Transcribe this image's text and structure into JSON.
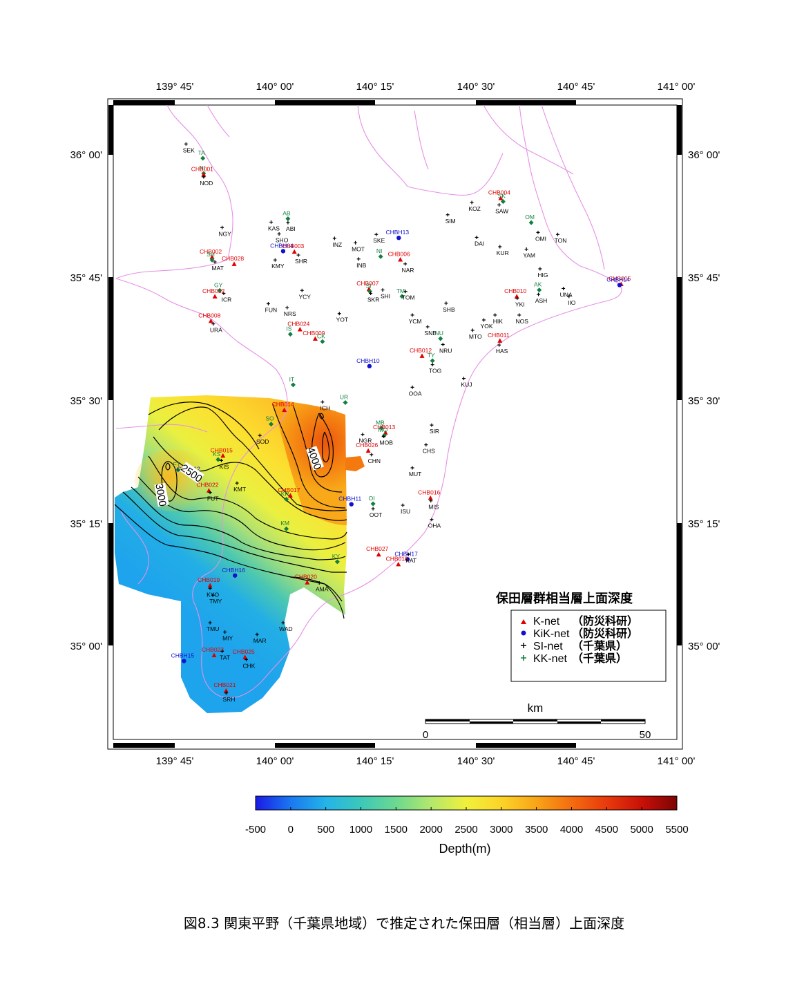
{
  "figure": {
    "caption": "図8.3 関東平野（千葉県地域）で推定された保田層（相当層）上面深度"
  },
  "map": {
    "lon_labels": [
      "139° 45'",
      "140° 00'",
      "140° 15'",
      "140° 30'",
      "140° 45'",
      "141° 00'"
    ],
    "lat_labels": [
      "36° 00'",
      "35° 45'",
      "35° 30'",
      "35° 15'",
      "35° 00'"
    ],
    "contour_labels": [
      "2500",
      "3000",
      "4000"
    ],
    "scale_bar": {
      "unit": "km",
      "start": "0",
      "end": "50"
    },
    "colors": {
      "coast": "#e58fe5",
      "kind_knet": "#e00000",
      "kind_kik": "#1010d0",
      "kind_si": "#000000",
      "kind_kk": "#108040"
    }
  },
  "legend": {
    "title": "保田層群相当層上面深度",
    "items": [
      {
        "net": "K-net",
        "org": "（防災科研）",
        "kind": "knet"
      },
      {
        "net": "KiK-net",
        "org": "（防災科研）",
        "kind": "kik"
      },
      {
        "net": "SI-net",
        "org": "（千葉県）",
        "kind": "si"
      },
      {
        "net": "KK-net",
        "org": "（千葉県）",
        "kind": "kk"
      }
    ]
  },
  "colorbar": {
    "ticks": [
      "-500",
      "0",
      "500",
      "1000",
      "1500",
      "2000",
      "2500",
      "3000",
      "3500",
      "4000",
      "4500",
      "5000",
      "5500"
    ],
    "label": "Depth(m)",
    "range": [
      -500,
      5500
    ]
  },
  "stations": [
    {
      "code": "SEK",
      "kind": "si",
      "lon": 139.778,
      "lat": 36.022
    },
    {
      "code": "TA",
      "kind": "kk",
      "lon": 139.82,
      "lat": 35.993
    },
    {
      "code": "NI",
      "kind": "kk",
      "lon": 139.822,
      "lat": 35.962
    },
    {
      "code": "CHB001",
      "kind": "knet",
      "lon": 139.822,
      "lat": 35.96
    },
    {
      "code": "NOD",
      "kind": "si",
      "lon": 139.822,
      "lat": 35.955
    },
    {
      "code": "AB",
      "kind": "kk",
      "lon": 140.032,
      "lat": 35.87
    },
    {
      "code": "KAS",
      "kind": "si",
      "lon": 139.99,
      "lat": 35.863
    },
    {
      "code": "ABI",
      "kind": "si",
      "lon": 140.032,
      "lat": 35.862
    },
    {
      "code": "NGY",
      "kind": "si",
      "lon": 139.868,
      "lat": 35.852
    },
    {
      "code": "SHO",
      "kind": "si",
      "lon": 140.01,
      "lat": 35.839
    },
    {
      "code": "INZ",
      "kind": "si",
      "lon": 140.148,
      "lat": 35.83
    },
    {
      "code": "SKE",
      "kind": "si",
      "lon": 140.252,
      "lat": 35.838
    },
    {
      "code": "CHBH13",
      "kind": "kik",
      "lon": 140.308,
      "lat": 35.831
    },
    {
      "code": "MOT",
      "kind": "si",
      "lon": 140.2,
      "lat": 35.821
    },
    {
      "code": "SIM",
      "kind": "si",
      "lon": 140.43,
      "lat": 35.878
    },
    {
      "code": "KOZ",
      "kind": "si",
      "lon": 140.49,
      "lat": 35.903
    },
    {
      "code": "CHB004",
      "kind": "knet",
      "lon": 140.562,
      "lat": 35.912
    },
    {
      "code": "SK",
      "kind": "kk",
      "lon": 140.568,
      "lat": 35.905
    },
    {
      "code": "SAW",
      "kind": "si",
      "lon": 140.558,
      "lat": 35.898
    },
    {
      "code": "DAI",
      "kind": "si",
      "lon": 140.502,
      "lat": 35.832
    },
    {
      "code": "OM",
      "kind": "kk",
      "lon": 140.638,
      "lat": 35.862
    },
    {
      "code": "OMI",
      "kind": "si",
      "lon": 140.655,
      "lat": 35.842
    },
    {
      "code": "TON",
      "kind": "si",
      "lon": 140.704,
      "lat": 35.838
    },
    {
      "code": "KUR",
      "kind": "si",
      "lon": 140.56,
      "lat": 35.813
    },
    {
      "code": "YAM",
      "kind": "si",
      "lon": 140.626,
      "lat": 35.808
    },
    {
      "code": "CHB002",
      "kind": "knet",
      "lon": 139.843,
      "lat": 35.792
    },
    {
      "code": "SH",
      "kind": "kk",
      "lon": 139.843,
      "lat": 35.786
    },
    {
      "code": "MAT",
      "kind": "si",
      "lon": 139.85,
      "lat": 35.782
    },
    {
      "code": "CHB028",
      "kind": "knet",
      "lon": 139.898,
      "lat": 35.778
    },
    {
      "code": "CHBH04",
      "kind": "kik",
      "lon": 140.02,
      "lat": 35.804
    },
    {
      "code": "KMY",
      "kind": "si",
      "lon": 140.0,
      "lat": 35.786
    },
    {
      "code": "CHB003",
      "kind": "knet",
      "lon": 140.048,
      "lat": 35.803
    },
    {
      "code": "SHR",
      "kind": "si",
      "lon": 140.058,
      "lat": 35.796
    },
    {
      "code": "NI",
      "kind": "kk",
      "lon": 140.263,
      "lat": 35.793
    },
    {
      "code": "INB",
      "kind": "si",
      "lon": 140.208,
      "lat": 35.788
    },
    {
      "code": "CHB006",
      "kind": "knet",
      "lon": 140.312,
      "lat": 35.787
    },
    {
      "code": "NAR",
      "kind": "si",
      "lon": 140.324,
      "lat": 35.778
    },
    {
      "code": "HIG",
      "kind": "si",
      "lon": 140.66,
      "lat": 35.768
    },
    {
      "code": "CHB005",
      "kind": "knet",
      "lon": 140.862,
      "lat": 35.737
    },
    {
      "code": "CHBH14",
      "kind": "kik",
      "lon": 140.858,
      "lat": 35.735
    },
    {
      "code": "GY",
      "kind": "kk",
      "lon": 139.862,
      "lat": 35.724
    },
    {
      "code": "ICR",
      "kind": "si",
      "lon": 139.872,
      "lat": 35.718
    },
    {
      "code": "CHB032",
      "kind": "knet",
      "lon": 139.85,
      "lat": 35.712
    },
    {
      "code": "YCY",
      "kind": "si",
      "lon": 140.067,
      "lat": 35.724
    },
    {
      "code": "CHB007",
      "kind": "knet",
      "lon": 140.234,
      "lat": 35.727
    },
    {
      "code": "SI",
      "kind": "kk",
      "lon": 140.236,
      "lat": 35.722
    },
    {
      "code": "SKR",
      "kind": "si",
      "lon": 140.238,
      "lat": 35.718
    },
    {
      "code": "SHI",
      "kind": "si",
      "lon": 140.268,
      "lat": 35.725
    },
    {
      "code": "TM",
      "kind": "kk",
      "lon": 140.316,
      "lat": 35.712
    },
    {
      "code": "TOM",
      "kind": "si",
      "lon": 140.325,
      "lat": 35.722
    },
    {
      "code": "CHB010",
      "kind": "knet",
      "lon": 140.602,
      "lat": 35.712
    },
    {
      "code": "YKI",
      "kind": "si",
      "lon": 140.603,
      "lat": 35.708
    },
    {
      "code": "AK",
      "kind": "kk",
      "lon": 140.658,
      "lat": 35.725
    },
    {
      "code": "ASH",
      "kind": "si",
      "lon": 140.656,
      "lat": 35.716
    },
    {
      "code": "UNA",
      "kind": "si",
      "lon": 140.718,
      "lat": 35.728
    },
    {
      "code": "IIO",
      "kind": "si",
      "lon": 140.732,
      "lat": 35.712
    },
    {
      "code": "FUN",
      "kind": "si",
      "lon": 139.983,
      "lat": 35.697
    },
    {
      "code": "NRS",
      "kind": "si",
      "lon": 140.03,
      "lat": 35.689
    },
    {
      "code": "SHB",
      "kind": "si",
      "lon": 140.426,
      "lat": 35.698
    },
    {
      "code": "CHB008",
      "kind": "knet",
      "lon": 139.84,
      "lat": 35.662
    },
    {
      "code": "URA",
      "kind": "si",
      "lon": 139.846,
      "lat": 35.656
    },
    {
      "code": "YOT",
      "kind": "si",
      "lon": 140.16,
      "lat": 35.677
    },
    {
      "code": "YCM",
      "kind": "si",
      "lon": 140.342,
      "lat": 35.674
    },
    {
      "code": "HIK",
      "kind": "si",
      "lon": 140.548,
      "lat": 35.674
    },
    {
      "code": "YOK",
      "kind": "si",
      "lon": 140.52,
      "lat": 35.664
    },
    {
      "code": "NOS",
      "kind": "si",
      "lon": 140.608,
      "lat": 35.674
    },
    {
      "code": "CHB024",
      "kind": "knet",
      "lon": 140.062,
      "lat": 35.645
    },
    {
      "code": "IS",
      "kind": "kk",
      "lon": 140.038,
      "lat": 35.635
    },
    {
      "code": "SNB",
      "kind": "si",
      "lon": 140.38,
      "lat": 35.65
    },
    {
      "code": "MTO",
      "kind": "si",
      "lon": 140.492,
      "lat": 35.643
    },
    {
      "code": "CHB009",
      "kind": "knet",
      "lon": 140.1,
      "lat": 35.626
    },
    {
      "code": "CK",
      "kind": "kk",
      "lon": 140.118,
      "lat": 35.62
    },
    {
      "code": "NU",
      "kind": "kk",
      "lon": 140.412,
      "lat": 35.626
    },
    {
      "code": "NRU",
      "kind": "si",
      "lon": 140.418,
      "lat": 35.614
    },
    {
      "code": "CHB011",
      "kind": "knet",
      "lon": 140.56,
      "lat": 35.622
    },
    {
      "code": "HAS",
      "kind": "si",
      "lon": 140.558,
      "lat": 35.613
    },
    {
      "code": "CHB012",
      "kind": "knet",
      "lon": 140.366,
      "lat": 35.591
    },
    {
      "code": "TY",
      "kind": "kk",
      "lon": 140.392,
      "lat": 35.581
    },
    {
      "code": "TOG",
      "kind": "si",
      "lon": 140.392,
      "lat": 35.573
    },
    {
      "code": "CHBH10",
      "kind": "kik",
      "lon": 140.235,
      "lat": 35.57
    },
    {
      "code": "IT",
      "kind": "kk",
      "lon": 140.045,
      "lat": 35.532
    },
    {
      "code": "KUJ",
      "kind": "si",
      "lon": 140.47,
      "lat": 35.545
    },
    {
      "code": "OOA",
      "kind": "si",
      "lon": 140.342,
      "lat": 35.527
    },
    {
      "code": "UR",
      "kind": "kk",
      "lon": 140.175,
      "lat": 35.496
    },
    {
      "code": "CHB014",
      "kind": "knet",
      "lon": 140.023,
      "lat": 35.481
    },
    {
      "code": "ICH",
      "kind": "si",
      "lon": 140.118,
      "lat": 35.497
    },
    {
      "code": "SO",
      "kind": "kk",
      "lon": 139.99,
      "lat": 35.452
    },
    {
      "code": "SOD",
      "kind": "si",
      "lon": 139.962,
      "lat": 35.429
    },
    {
      "code": "MB",
      "kind": "kk",
      "lon": 140.265,
      "lat": 35.444
    },
    {
      "code": "CHB013",
      "kind": "knet",
      "lon": 140.275,
      "lat": 35.435
    },
    {
      "code": "MO",
      "kind": "kk",
      "lon": 140.272,
      "lat": 35.429
    },
    {
      "code": "MOB",
      "kind": "si",
      "lon": 140.27,
      "lat": 35.427
    },
    {
      "code": "NGR",
      "kind": "si",
      "lon": 140.218,
      "lat": 35.431
    },
    {
      "code": "SIR",
      "kind": "si",
      "lon": 140.39,
      "lat": 35.45
    },
    {
      "code": "CHS",
      "kind": "si",
      "lon": 140.376,
      "lat": 35.41
    },
    {
      "code": "CHB026",
      "kind": "knet",
      "lon": 140.232,
      "lat": 35.398
    },
    {
      "code": "CHN",
      "kind": "si",
      "lon": 140.24,
      "lat": 35.39
    },
    {
      "code": "CHB015",
      "kind": "knet",
      "lon": 139.87,
      "lat": 35.388
    },
    {
      "code": "KS",
      "kind": "kk",
      "lon": 139.858,
      "lat": 35.38
    },
    {
      "code": "KIS",
      "kind": "si",
      "lon": 139.866,
      "lat": 35.378
    },
    {
      "code": "FT",
      "kind": "kk",
      "lon": 139.758,
      "lat": 35.359
    },
    {
      "code": "CHBH12",
      "kind": "kik",
      "lon": 139.788,
      "lat": 35.35
    },
    {
      "code": "MUT",
      "kind": "si",
      "lon": 140.342,
      "lat": 35.363
    },
    {
      "code": "KMT",
      "kind": "si",
      "lon": 139.905,
      "lat": 35.332
    },
    {
      "code": "CHB022",
      "kind": "knet",
      "lon": 139.835,
      "lat": 35.317
    },
    {
      "code": "FUT",
      "kind": "si",
      "lon": 139.838,
      "lat": 35.313
    },
    {
      "code": "KR",
      "kind": "kk",
      "lon": 140.028,
      "lat": 35.299
    },
    {
      "code": "CHB017",
      "kind": "knet",
      "lon": 140.038,
      "lat": 35.307
    },
    {
      "code": "CHBH11",
      "kind": "kik",
      "lon": 140.19,
      "lat": 35.289
    },
    {
      "code": "OI",
      "kind": "kk",
      "lon": 140.244,
      "lat": 35.29
    },
    {
      "code": "OOT",
      "kind": "si",
      "lon": 140.244,
      "lat": 35.28
    },
    {
      "code": "ISU",
      "kind": "si",
      "lon": 140.318,
      "lat": 35.287
    },
    {
      "code": "CHB016",
      "kind": "knet",
      "lon": 140.387,
      "lat": 35.302
    },
    {
      "code": "MIS",
      "kind": "si",
      "lon": 140.388,
      "lat": 35.296
    },
    {
      "code": "OHA",
      "kind": "si",
      "lon": 140.39,
      "lat": 35.258
    },
    {
      "code": "KM",
      "kind": "kk",
      "lon": 140.028,
      "lat": 35.239
    },
    {
      "code": "CHB027",
      "kind": "knet",
      "lon": 140.258,
      "lat": 35.187
    },
    {
      "code": "CHBH17",
      "kind": "kik",
      "lon": 140.33,
      "lat": 35.177
    },
    {
      "code": "KAT",
      "kind": "si",
      "lon": 140.332,
      "lat": 35.187
    },
    {
      "code": "CHB018",
      "kind": "knet",
      "lon": 140.307,
      "lat": 35.167
    },
    {
      "code": "KY",
      "kind": "kk",
      "lon": 140.155,
      "lat": 35.172
    },
    {
      "code": "CHBH16",
      "kind": "kik",
      "lon": 139.9,
      "lat": 35.144
    },
    {
      "code": "CHB020",
      "kind": "knet",
      "lon": 140.08,
      "lat": 35.13
    },
    {
      "code": "AMA",
      "kind": "si",
      "lon": 140.11,
      "lat": 35.129
    },
    {
      "code": "CHB019",
      "kind": "knet",
      "lon": 139.838,
      "lat": 35.124
    },
    {
      "code": "KYO",
      "kind": "si",
      "lon": 139.838,
      "lat": 35.118
    },
    {
      "code": "TMY",
      "kind": "si",
      "lon": 139.845,
      "lat": 35.104
    },
    {
      "code": "TMU",
      "kind": "si",
      "lon": 139.838,
      "lat": 35.048
    },
    {
      "code": "WAD",
      "kind": "si",
      "lon": 140.02,
      "lat": 35.048
    },
    {
      "code": "MIY",
      "kind": "si",
      "lon": 139.875,
      "lat": 35.029
    },
    {
      "code": "MAR",
      "kind": "si",
      "lon": 139.955,
      "lat": 35.024
    },
    {
      "code": "CHB023",
      "kind": "knet",
      "lon": 139.848,
      "lat": 34.982
    },
    {
      "code": "TAT",
      "kind": "si",
      "lon": 139.868,
      "lat": 34.99
    },
    {
      "code": "CHB025",
      "kind": "knet",
      "lon": 139.925,
      "lat": 34.978
    },
    {
      "code": "CHK",
      "kind": "si",
      "lon": 139.928,
      "lat": 34.973
    },
    {
      "code": "CHBH15",
      "kind": "kik",
      "lon": 139.773,
      "lat": 34.97
    },
    {
      "code": "CHB021",
      "kind": "knet",
      "lon": 139.878,
      "lat": 34.91
    },
    {
      "code": "SRH",
      "kind": "si",
      "lon": 139.878,
      "lat": 34.905
    }
  ]
}
